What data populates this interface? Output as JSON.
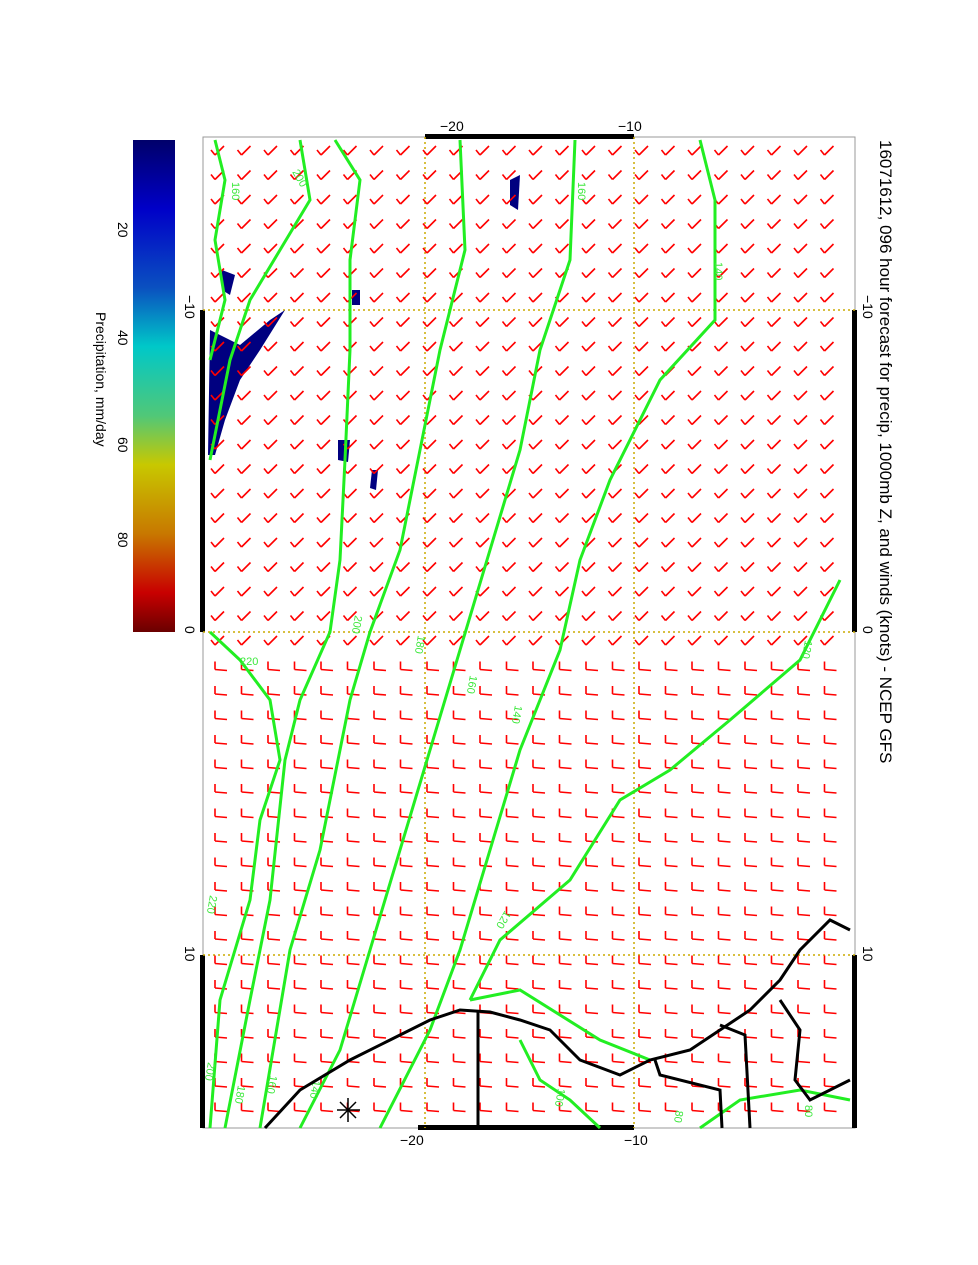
{
  "title": "16071612, 096 hour forecast for precip, 1000mb Z, and winds (knots) - NCEP GFS",
  "colorbar": {
    "label": "Precipitation, mm/day",
    "ticks": [
      "20",
      "40",
      "60",
      "80"
    ],
    "range": [
      0,
      100
    ],
    "colors": [
      "#00006a",
      "#0000c8",
      "#00c8c8",
      "#c8c800",
      "#c80000",
      "#6a0000"
    ]
  },
  "axes": {
    "top_ticks": [
      "−20",
      "−10"
    ],
    "bottom_ticks": [
      "−20",
      "−10"
    ],
    "left_ticks": [
      "−10",
      "0",
      "10"
    ],
    "right_ticks": [
      "−10",
      "0",
      "10"
    ]
  },
  "contour_labels": [
    "160",
    "200",
    "140",
    "160",
    "120",
    "140",
    "160",
    "180",
    "200",
    "220",
    "220",
    "200",
    "180",
    "160",
    "140",
    "100",
    "80",
    "80",
    "120"
  ],
  "colors": {
    "contour": "#22ee22",
    "wind": "#ff0000",
    "precip": "#000080",
    "grid": "#ccaa00",
    "coast": "#000000"
  }
}
